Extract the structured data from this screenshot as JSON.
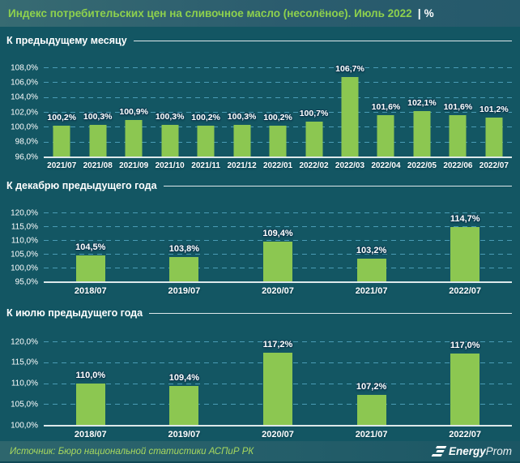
{
  "header": {
    "title": "Индекс потребительских цен на сливочное масло (несолёное). Июль 2022",
    "separator": "|",
    "unit": "%"
  },
  "colors": {
    "background": "#135663",
    "titlebar_left": "#376b72",
    "titlebar_right": "#255a6b",
    "bar_green": "#8cc751",
    "title_green": "#8ed14d",
    "gridline_blue": "#4a9cb5",
    "axis_line": "#dce8ea",
    "footer_source_green": "#a8d85e",
    "text_white": "#ffffff"
  },
  "chart_data": [
    {
      "type": "bar",
      "title": "К предыдущему месяцу",
      "categories": [
        "2021/07",
        "2021/08",
        "2021/09",
        "2021/10",
        "2021/11",
        "2021/12",
        "2022/01",
        "2022/02",
        "2022/03",
        "2022/04",
        "2022/05",
        "2022/06",
        "2022/07"
      ],
      "values": [
        100.2,
        100.3,
        100.9,
        100.3,
        100.2,
        100.3,
        100.2,
        100.7,
        106.7,
        101.6,
        102.1,
        101.6,
        101.2
      ],
      "labels": [
        "100,2%",
        "100,3%",
        "100,9%",
        "100,3%",
        "100,2%",
        "100,3%",
        "100,2%",
        "100,7%",
        "106,7%",
        "101,6%",
        "102,1%",
        "101,6%",
        "101,2%"
      ],
      "ylim": [
        96,
        108
      ],
      "ystep": 2,
      "yticks": [
        "96,0%",
        "98,0%",
        "100,0%",
        "102,0%",
        "104,0%",
        "106,0%",
        "108,0%"
      ],
      "grid": "dashed-horizontal",
      "legend": "none"
    },
    {
      "type": "bar",
      "title": "К декабрю предыдущего года",
      "categories": [
        "2018/07",
        "2019/07",
        "2020/07",
        "2021/07",
        "2022/07"
      ],
      "values": [
        104.5,
        103.8,
        109.4,
        103.2,
        114.7
      ],
      "labels": [
        "104,5%",
        "103,8%",
        "109,4%",
        "103,2%",
        "114,7%"
      ],
      "ylim": [
        95,
        120
      ],
      "ystep": 5,
      "yticks": [
        "95,0%",
        "100,0%",
        "105,0%",
        "110,0%",
        "115,0%",
        "120,0%"
      ],
      "grid": "dashed-horizontal",
      "legend": "none"
    },
    {
      "type": "bar",
      "title": "К июлю предыдущего года",
      "categories": [
        "2018/07",
        "2019/07",
        "2020/07",
        "2021/07",
        "2022/07"
      ],
      "values": [
        110.0,
        109.4,
        117.2,
        107.2,
        117.0
      ],
      "labels": [
        "110,0%",
        "109,4%",
        "117,2%",
        "107,2%",
        "117,0%"
      ],
      "ylim": [
        100,
        120
      ],
      "ystep": 5,
      "yticks": [
        "100,0%",
        "105,0%",
        "110,0%",
        "115,0%",
        "120,0%"
      ],
      "grid": "dashed-horizontal",
      "legend": "none"
    }
  ],
  "footer": {
    "source": "Источник: Бюро национальной статистики АСПиР РК",
    "logo_icon": "energyprom-stacked-bars-icon",
    "logo_text_bold": "Energy",
    "logo_text_light": "Prom"
  }
}
